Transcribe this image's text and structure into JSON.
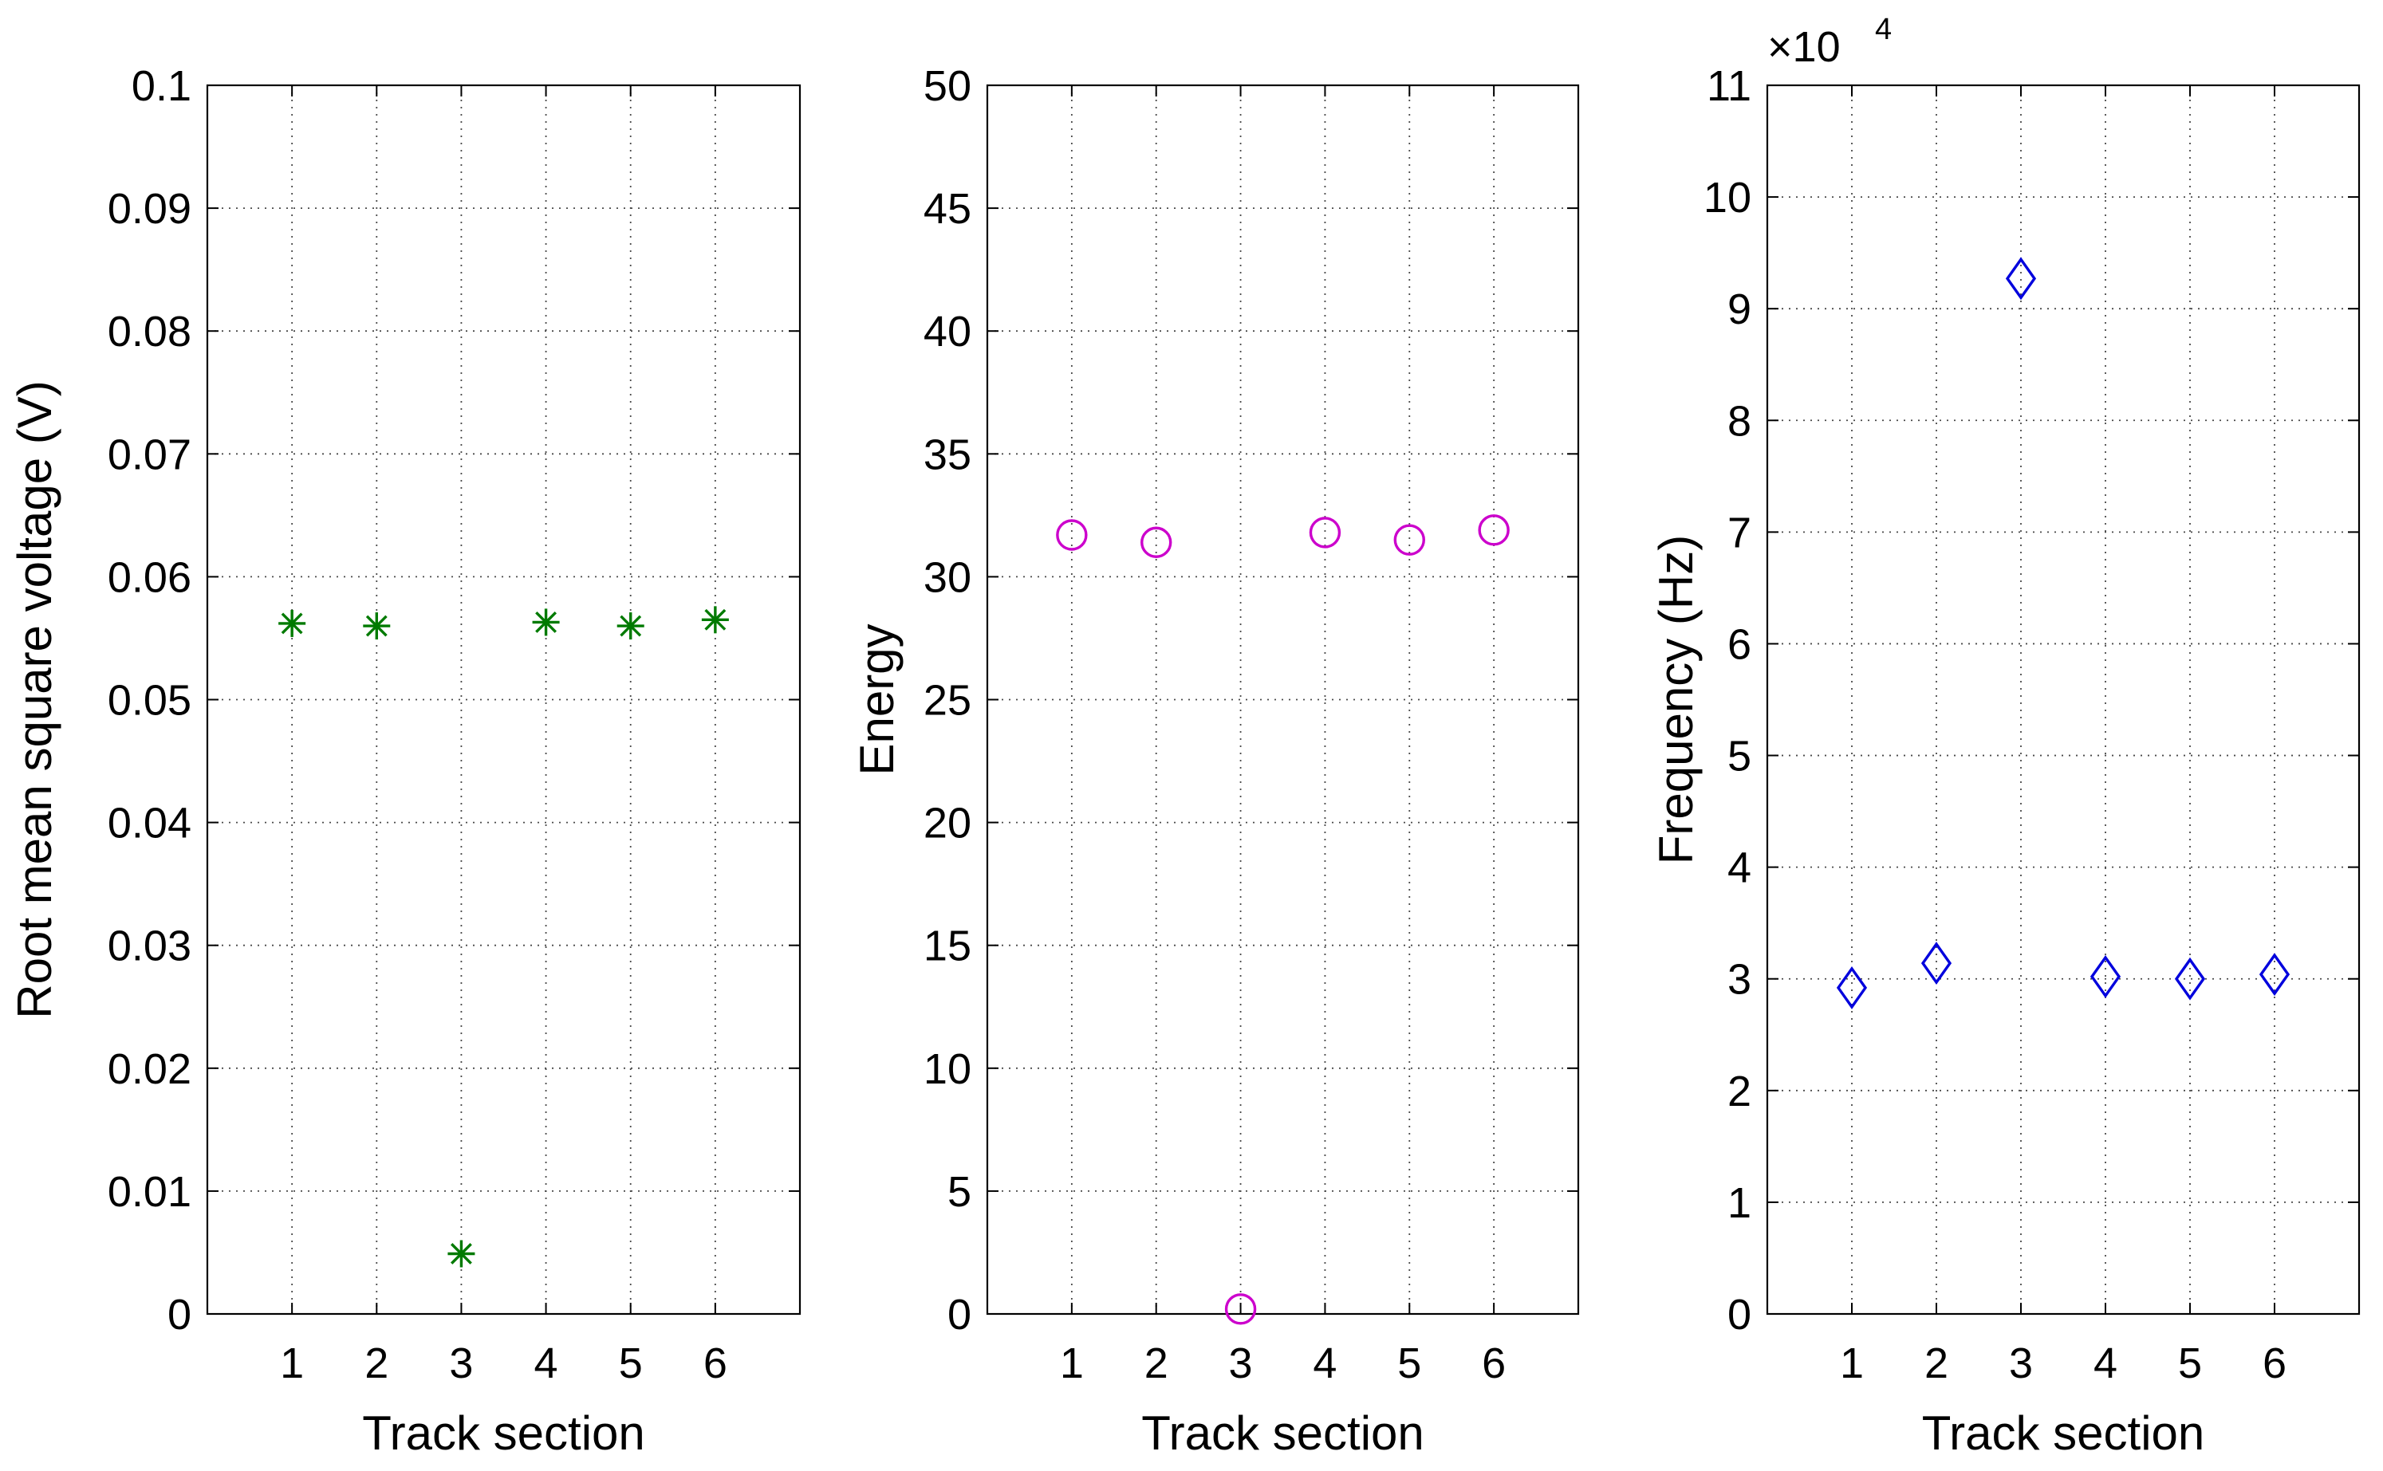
{
  "chart_data": [
    {
      "type": "scatter",
      "xlabel": "Track section",
      "ylabel": "Root mean square voltage (V)",
      "x": [
        1,
        2,
        3,
        4,
        5,
        6
      ],
      "series": [
        {
          "x": [
            1,
            2,
            3,
            4,
            5,
            6
          ],
          "y": [
            0.0562,
            0.056,
            0.0049,
            0.0563,
            0.056,
            0.0565
          ],
          "marker": "asterisk",
          "color": "#007a00"
        }
      ],
      "xlim": [
        0,
        7
      ],
      "ylim": [
        0,
        0.1
      ],
      "xticks": [
        "1",
        "2",
        "3",
        "4",
        "5",
        "6"
      ],
      "xtick_values": [
        1,
        2,
        3,
        4,
        5,
        6
      ],
      "yticks": [
        "0",
        "0.01",
        "0.02",
        "0.03",
        "0.04",
        "0.05",
        "0.06",
        "0.07",
        "0.08",
        "0.09",
        "0.1"
      ],
      "ytick_values": [
        0,
        0.01,
        0.02,
        0.03,
        0.04,
        0.05,
        0.06,
        0.07,
        0.08,
        0.09,
        0.1
      ],
      "grid": true,
      "exponent_label": ""
    },
    {
      "type": "scatter",
      "xlabel": "Track section",
      "ylabel": "Energy",
      "x": [
        1,
        2,
        3,
        4,
        5,
        6
      ],
      "series": [
        {
          "x": [
            1,
            2,
            3,
            4,
            5,
            6
          ],
          "y": [
            31.7,
            31.4,
            0.2,
            31.8,
            31.5,
            31.9
          ],
          "marker": "circle",
          "color": "#cc00cc"
        }
      ],
      "xlim": [
        0,
        7
      ],
      "ylim": [
        0,
        50
      ],
      "xticks": [
        "1",
        "2",
        "3",
        "4",
        "5",
        "6"
      ],
      "xtick_values": [
        1,
        2,
        3,
        4,
        5,
        6
      ],
      "yticks": [
        "0",
        "5",
        "10",
        "15",
        "20",
        "25",
        "30",
        "35",
        "40",
        "45",
        "50"
      ],
      "ytick_values": [
        0,
        5,
        10,
        15,
        20,
        25,
        30,
        35,
        40,
        45,
        50
      ],
      "grid": true,
      "exponent_label": ""
    },
    {
      "type": "scatter",
      "xlabel": "Track section",
      "ylabel": "Frequency (Hz)",
      "x": [
        1,
        2,
        3,
        4,
        5,
        6
      ],
      "series": [
        {
          "x": [
            1,
            2,
            3,
            4,
            5,
            6
          ],
          "y": [
            29200,
            31400,
            92700,
            30200,
            30000,
            30400
          ],
          "marker": "diamond",
          "color": "#0000dd"
        }
      ],
      "xlim": [
        0,
        7
      ],
      "ylim": [
        0,
        110000
      ],
      "xticks": [
        "1",
        "2",
        "3",
        "4",
        "5",
        "6"
      ],
      "xtick_values": [
        1,
        2,
        3,
        4,
        5,
        6
      ],
      "yticks": [
        "0",
        "1",
        "2",
        "3",
        "4",
        "5",
        "6",
        "7",
        "8",
        "9",
        "10",
        "11"
      ],
      "ytick_values": [
        0,
        10000,
        20000,
        30000,
        40000,
        50000,
        60000,
        70000,
        80000,
        90000,
        100000,
        110000
      ],
      "grid": true,
      "exponent_label": "×10",
      "exponent_power": "4"
    }
  ]
}
